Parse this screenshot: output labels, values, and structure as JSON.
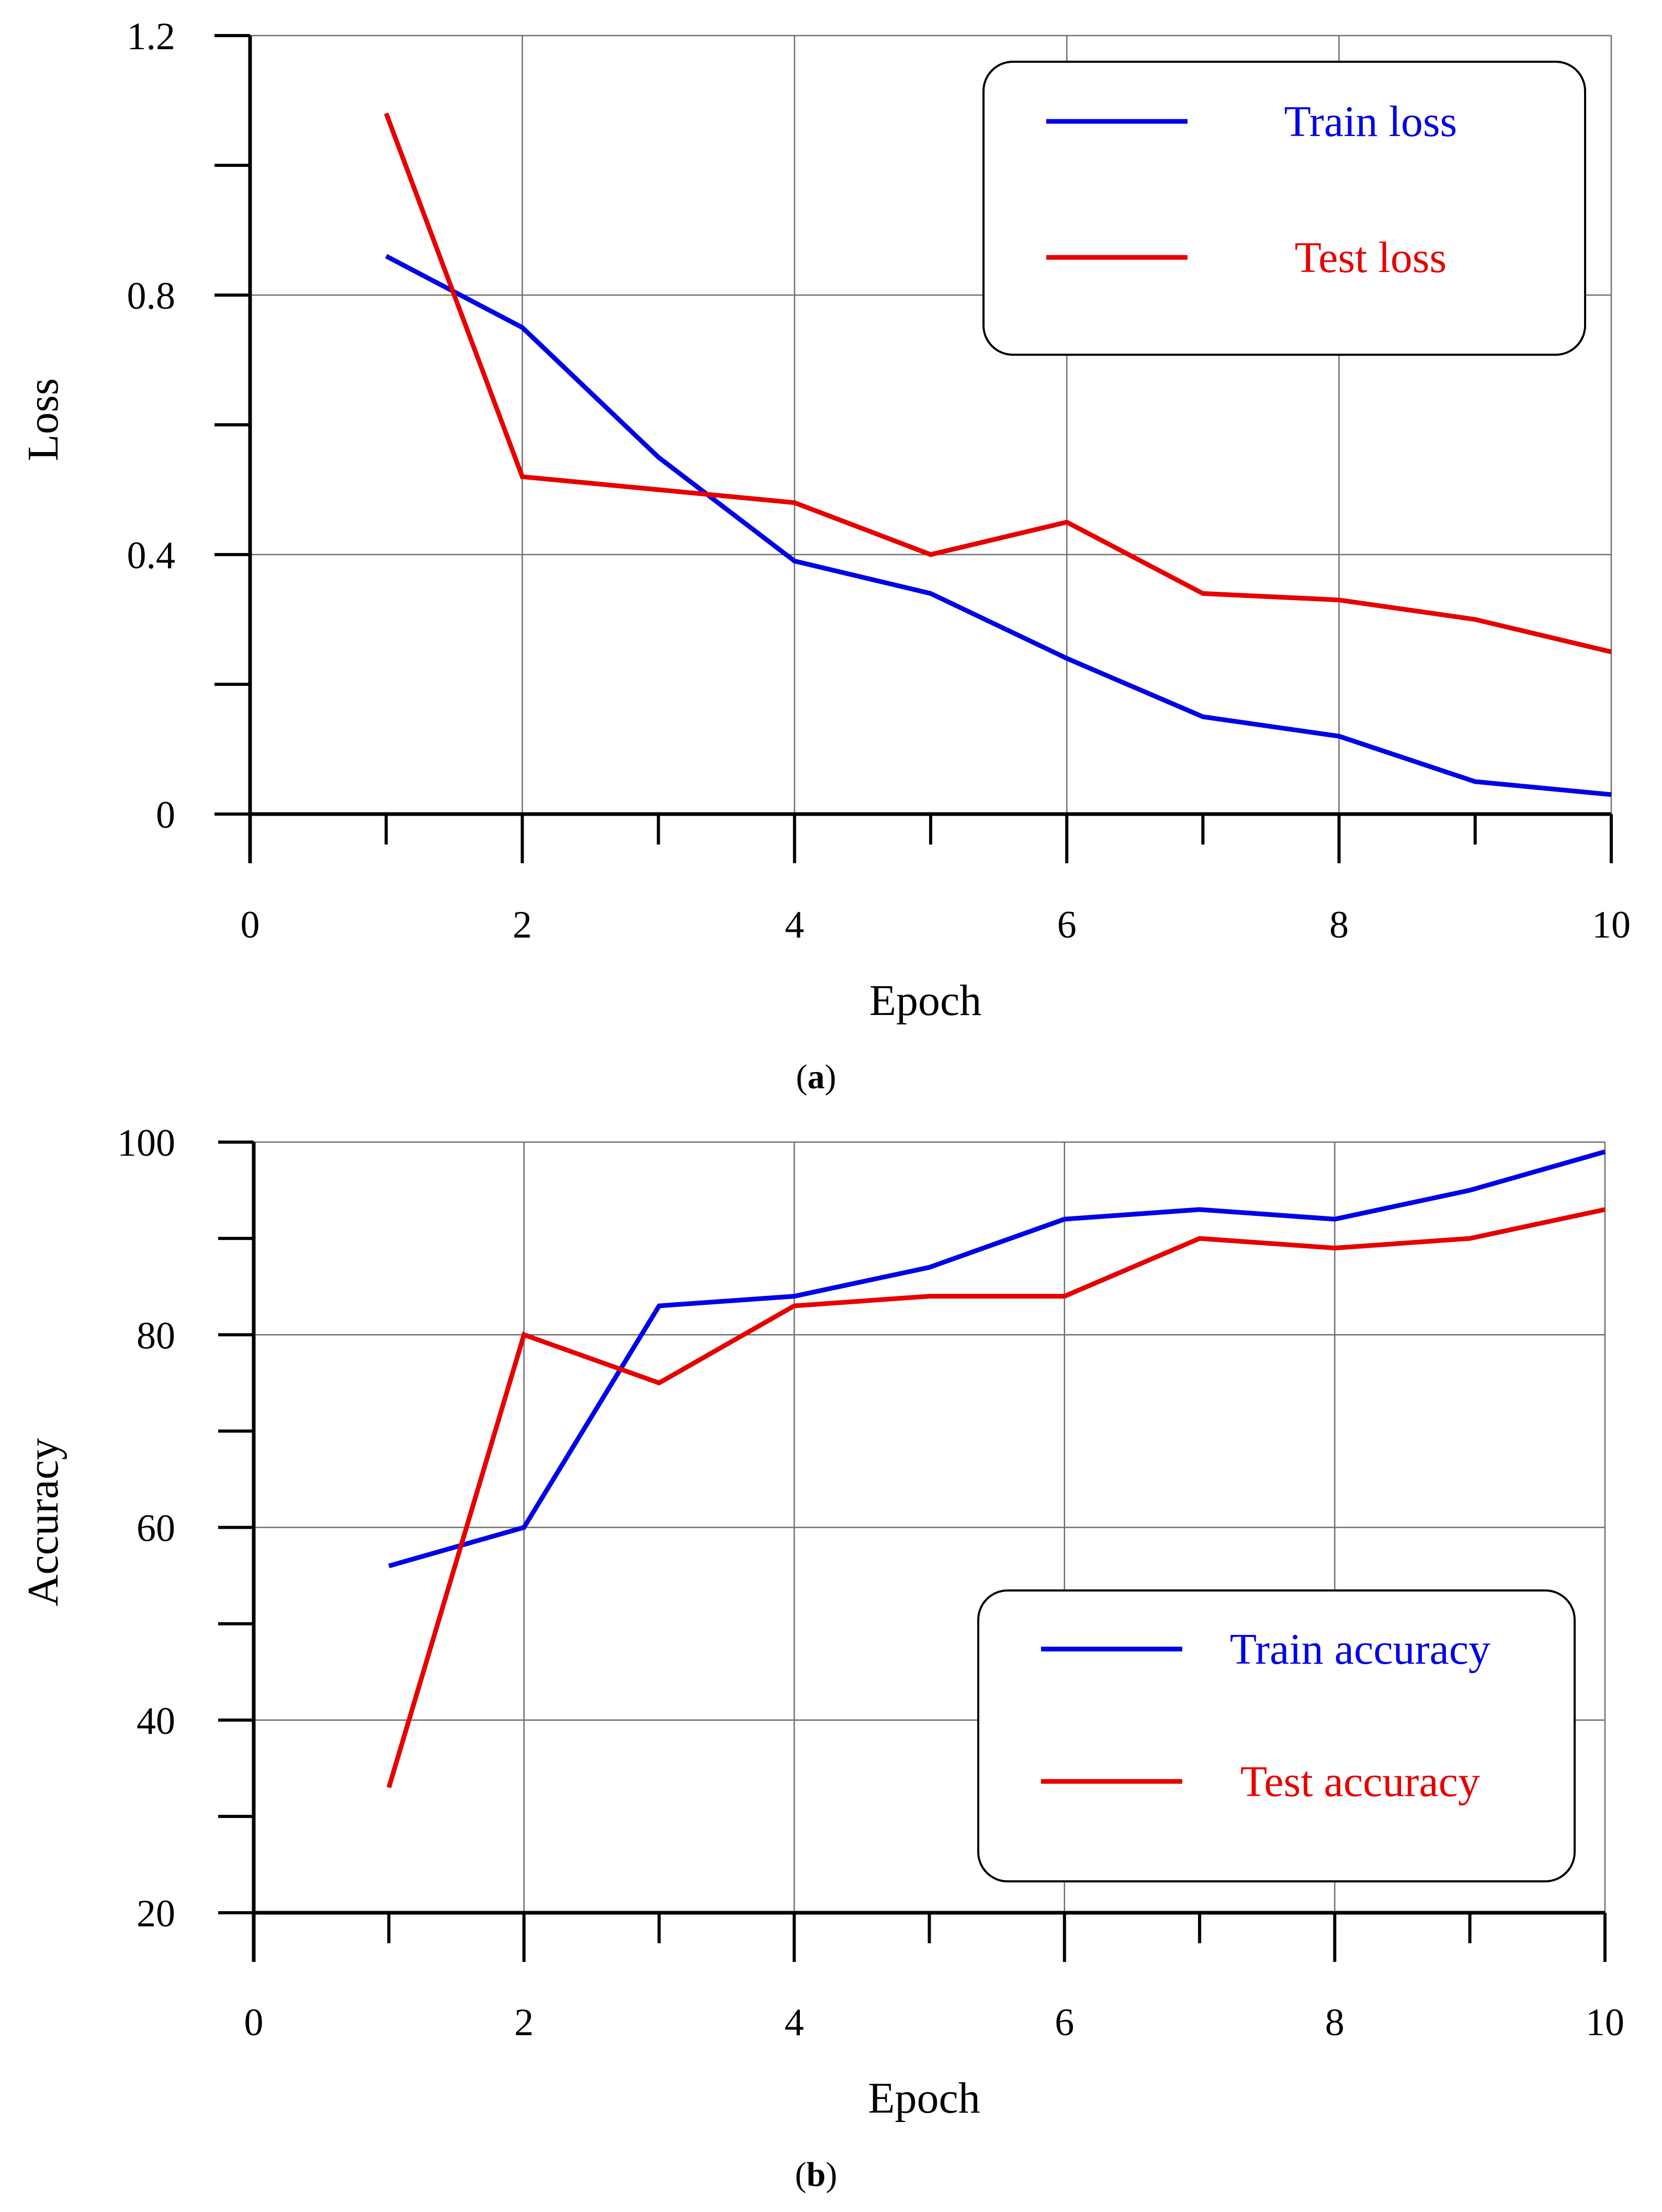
{
  "chart_data": [
    {
      "panel": "a",
      "type": "line",
      "caption": {
        "open": "(",
        "letter": "a",
        "close": ")"
      },
      "xlabel": "Epoch",
      "ylabel": "Loss",
      "xlim": [
        0,
        10
      ],
      "ylim": [
        0,
        1.2
      ],
      "xticks": [
        0,
        2,
        4,
        6,
        8,
        10
      ],
      "xticks_minor": [
        1,
        3,
        5,
        7,
        9
      ],
      "yticks": [
        0,
        0.4,
        0.8,
        1.2
      ],
      "ytick_labels": [
        "0",
        "0.4",
        "0.8",
        "1.2"
      ],
      "yticks_minor": [
        0.2,
        0.6,
        1.0
      ],
      "xtick_labels": [
        "0",
        "2",
        "4",
        "6",
        "8",
        "10"
      ],
      "grid": true,
      "legend_position": "top-right",
      "x": [
        1,
        2,
        3,
        4,
        5,
        6,
        7,
        8,
        9,
        10
      ],
      "series": [
        {
          "name": "Train loss",
          "color": "#0000e6",
          "values": [
            0.86,
            0.75,
            0.55,
            0.39,
            0.34,
            0.24,
            0.15,
            0.12,
            0.05,
            0.03
          ]
        },
        {
          "name": "Test loss",
          "color": "#e60000",
          "values": [
            1.08,
            0.52,
            0.5,
            0.48,
            0.4,
            0.45,
            0.34,
            0.33,
            0.3,
            0.25
          ]
        }
      ]
    },
    {
      "panel": "b",
      "type": "line",
      "caption": {
        "open": "(",
        "letter": "b",
        "close": ")"
      },
      "xlabel": "Epoch",
      "ylabel": "Accuracy",
      "xlim": [
        0,
        10
      ],
      "ylim": [
        20,
        100
      ],
      "xticks": [
        0,
        2,
        4,
        6,
        8,
        10
      ],
      "xticks_minor": [
        1,
        3,
        5,
        7,
        9
      ],
      "yticks": [
        20,
        40,
        60,
        80,
        100
      ],
      "ytick_labels": [
        "20",
        "40",
        "60",
        "80",
        "100"
      ],
      "yticks_minor": [
        30,
        50,
        70,
        90
      ],
      "xtick_labels": [
        "0",
        "2",
        "4",
        "6",
        "8",
        "10"
      ],
      "grid": true,
      "legend_position": "bottom-right",
      "x": [
        1,
        2,
        3,
        4,
        5,
        6,
        7,
        8,
        9,
        10
      ],
      "series": [
        {
          "name": "Train accuracy",
          "color": "#0000e6",
          "values": [
            56,
            60,
            83,
            84,
            87,
            92,
            93,
            92,
            95,
            99
          ]
        },
        {
          "name": "Test accuracy",
          "color": "#e60000",
          "values": [
            33,
            80,
            75,
            83,
            84,
            84,
            90,
            89,
            90,
            93
          ]
        }
      ]
    }
  ]
}
